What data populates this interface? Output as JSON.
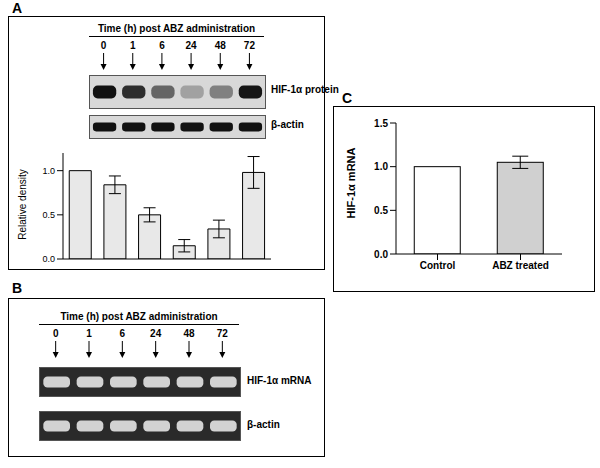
{
  "chart_data": [
    {
      "type": "bar",
      "panel": "A",
      "heading": "Time (h) post ABZ administration",
      "lanes": [
        "0",
        "1",
        "6",
        "24",
        "48",
        "72"
      ],
      "bands": [
        "HIF-1α protein",
        "β-actin"
      ],
      "y_label": "Relative density",
      "categories": [
        null,
        null,
        null,
        null,
        null,
        null
      ],
      "values": [
        1.0,
        0.84,
        0.5,
        0.15,
        0.34,
        0.98
      ],
      "errors": [
        0,
        0.1,
        0.08,
        0.07,
        0.1,
        0.18
      ],
      "color": "#e8e8e8",
      "ylim": [
        0,
        1.2
      ],
      "yticks": [
        {
          "value": 0,
          "label": "0.0"
        },
        {
          "value": 0.5,
          "label": "0.5"
        },
        {
          "value": 1,
          "label": "1.0"
        }
      ],
      "tick_labels": "y"
    },
    {
      "type": "gel",
      "panel": "B",
      "heading": "Time (h) post ABZ administration",
      "lanes": [
        "0",
        "1",
        "6",
        "24",
        "48",
        "72"
      ],
      "bands": [
        "HIF-1α mRNA",
        "β-actin"
      ]
    },
    {
      "type": "bar",
      "panel": "C",
      "y_label": "HIF-1α mRNA",
      "categories": [
        "Control",
        "ABZ treated"
      ],
      "values": [
        1.0,
        1.05
      ],
      "errors": [
        0,
        0.07
      ],
      "colors": [
        "#ffffff",
        "#d0d0d0"
      ],
      "ylim": [
        0,
        1.5
      ],
      "yticks": [
        {
          "value": 0,
          "label": "0.0"
        },
        {
          "value": 0.5,
          "label": "0.5"
        },
        {
          "value": 1,
          "label": "1.0"
        },
        {
          "value": 1.5,
          "label": "1.5"
        }
      ]
    }
  ]
}
